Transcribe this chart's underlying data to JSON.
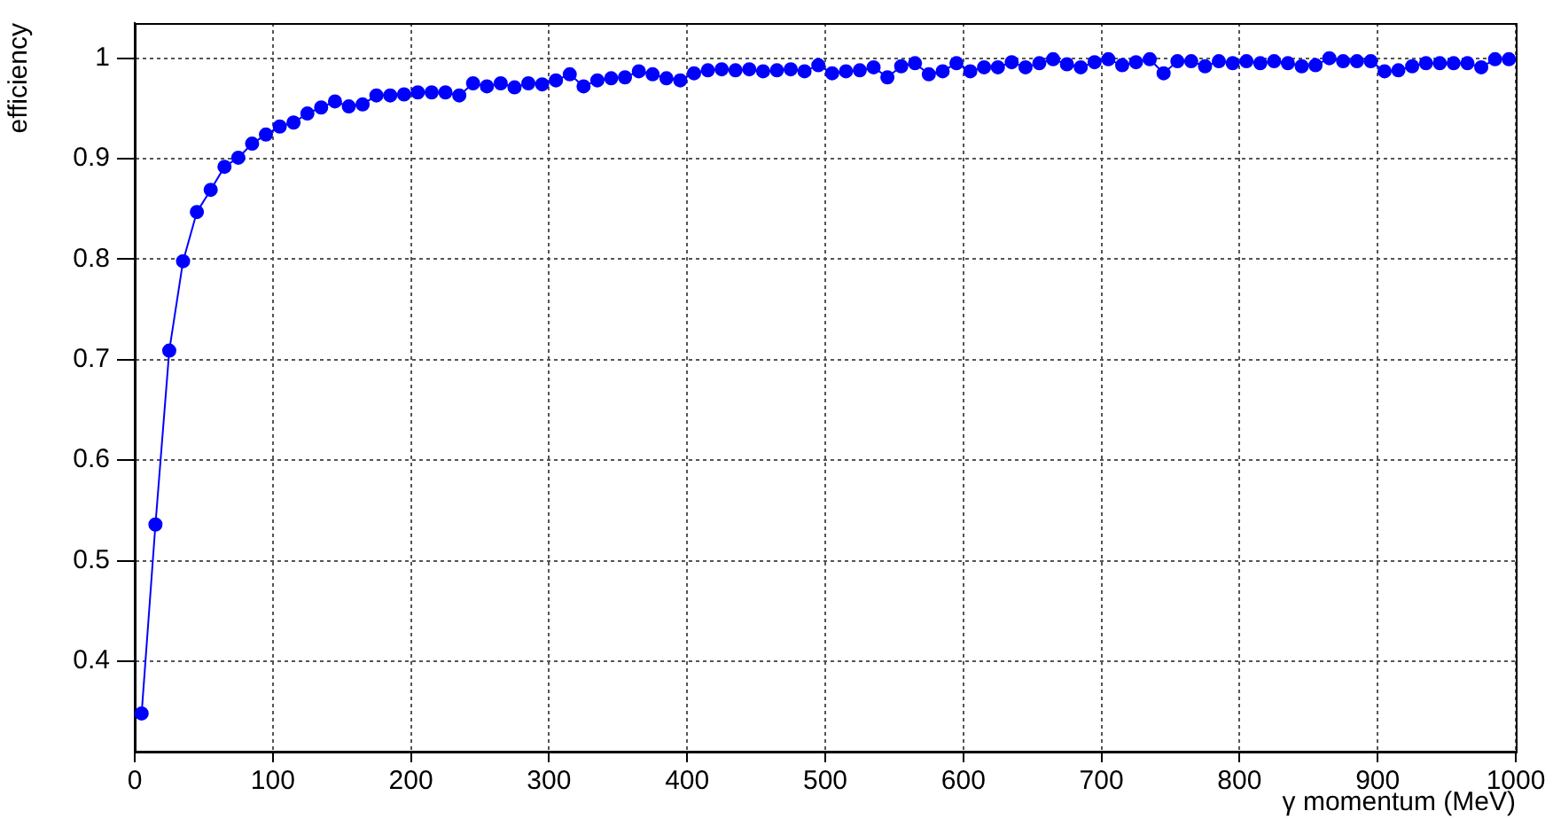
{
  "chart_data": {
    "type": "line",
    "xlabel": "γ momentum (MeV)",
    "ylabel": "efficiency",
    "x": [
      5,
      15,
      25,
      35,
      45,
      55,
      65,
      75,
      85,
      95,
      105,
      115,
      125,
      135,
      145,
      155,
      165,
      175,
      185,
      195,
      205,
      215,
      225,
      235,
      245,
      255,
      265,
      275,
      285,
      295,
      305,
      315,
      325,
      335,
      345,
      355,
      365,
      375,
      385,
      395,
      405,
      415,
      425,
      435,
      445,
      455,
      465,
      475,
      485,
      495,
      505,
      515,
      525,
      535,
      545,
      555,
      565,
      575,
      585,
      595,
      605,
      615,
      625,
      635,
      645,
      655,
      665,
      675,
      685,
      695,
      705,
      715,
      725,
      735,
      745,
      755,
      765,
      775,
      785,
      795,
      805,
      815,
      825,
      835,
      845,
      855,
      865,
      875,
      885,
      895,
      905,
      915,
      925,
      935,
      945,
      955,
      965,
      975,
      985,
      995
    ],
    "series": [
      {
        "color": "#0000ff",
        "values": [
          0.348,
          0.536,
          0.709,
          0.798,
          0.847,
          0.869,
          0.892,
          0.901,
          0.915,
          0.924,
          0.932,
          0.936,
          0.945,
          0.951,
          0.957,
          0.952,
          0.954,
          0.963,
          0.963,
          0.964,
          0.966,
          0.966,
          0.966,
          0.963,
          0.975,
          0.972,
          0.975,
          0.971,
          0.975,
          0.974,
          0.978,
          0.984,
          0.972,
          0.978,
          0.98,
          0.981,
          0.987,
          0.984,
          0.98,
          0.978,
          0.985,
          0.988,
          0.989,
          0.988,
          0.989,
          0.987,
          0.988,
          0.989,
          0.987,
          0.993,
          0.985,
          0.987,
          0.988,
          0.991,
          0.981,
          0.992,
          0.995,
          0.984,
          0.987,
          0.995,
          0.987,
          0.991,
          0.991,
          0.996,
          0.991,
          0.995,
          0.999,
          0.994,
          0.991,
          0.996,
          0.999,
          0.993,
          0.996,
          0.999,
          0.985,
          0.997,
          0.997,
          0.992,
          0.997,
          0.995,
          0.997,
          0.995,
          0.997,
          0.995,
          0.992,
          0.993,
          1.0,
          0.997,
          0.997,
          0.997,
          0.987,
          0.988,
          0.992,
          0.995,
          0.995,
          0.995,
          0.995,
          0.991,
          0.999,
          0.999
        ]
      }
    ],
    "xlim": [
      0,
      1000
    ],
    "xticks": [
      0,
      100,
      200,
      300,
      400,
      500,
      600,
      700,
      800,
      900,
      1000
    ],
    "ylim": [
      0.31,
      1.035
    ],
    "yticks": [
      0.4,
      0.5,
      0.6,
      0.7,
      0.8,
      0.9,
      1
    ],
    "grid": true,
    "legend": false,
    "marker": "circle",
    "line_style": "solid"
  }
}
